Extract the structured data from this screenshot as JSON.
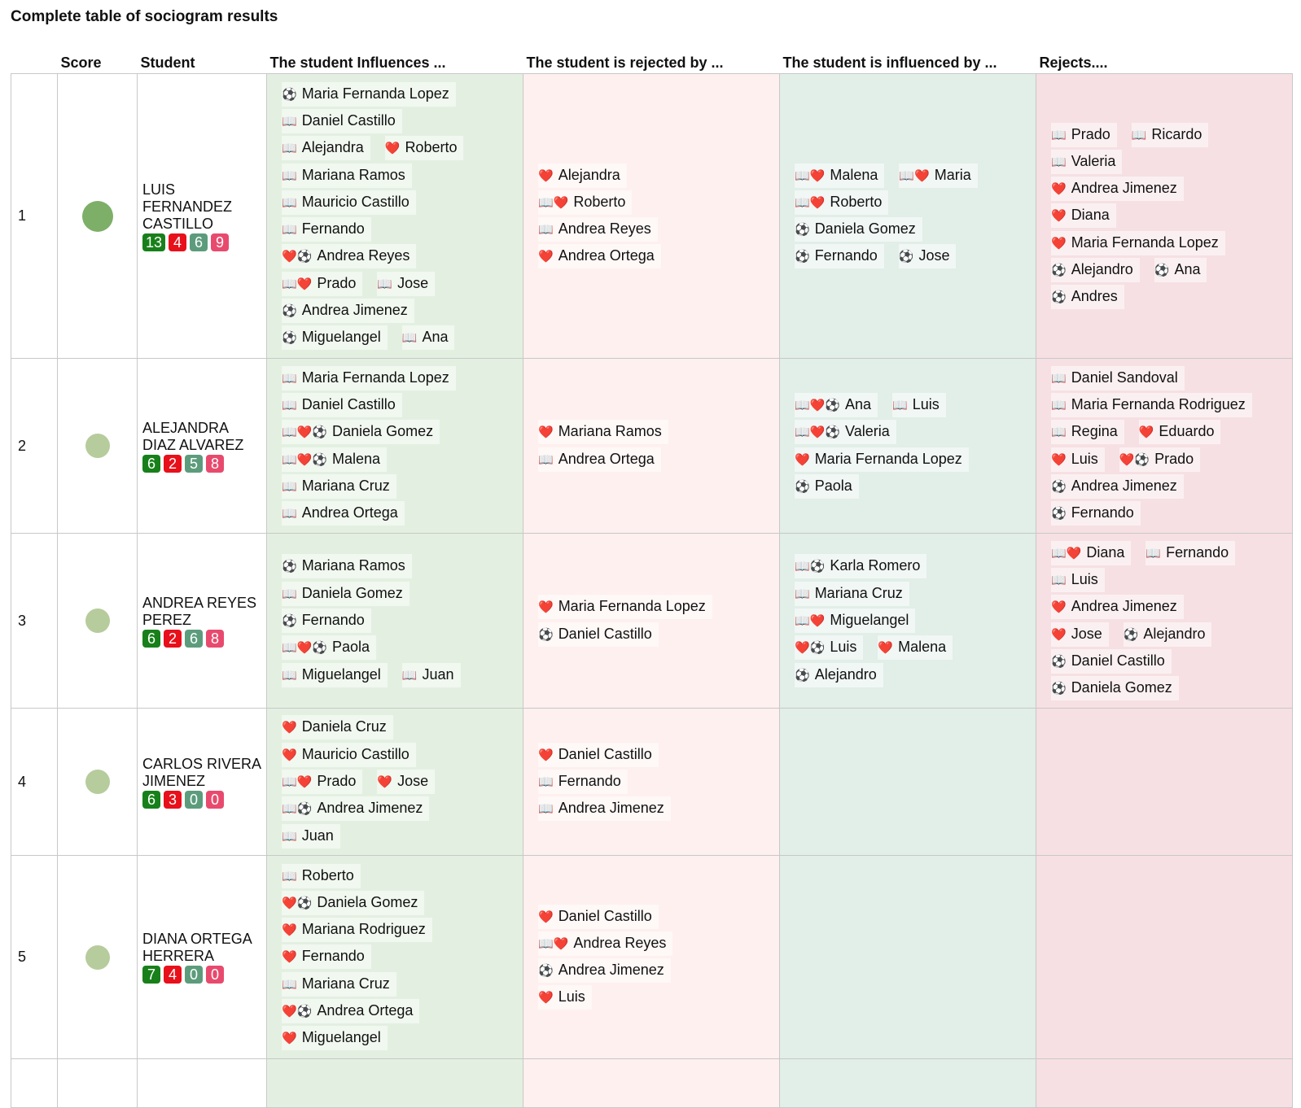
{
  "title": "Complete table of sociogram results",
  "headers": [
    "Score",
    "Student",
    "The student Influences ...",
    "The student is rejected by ...",
    "The student is influenced by ...",
    "Rejects...."
  ],
  "column_colors": [
    "#e3f0e1",
    "#fdf0ef",
    "#e2eee8",
    "#f6e0e3"
  ],
  "badge_colors": [
    "#18801a",
    "#e8101a",
    "#5c9c7c",
    "#e84a6e"
  ],
  "rows": [
    {
      "index": "1",
      "student": "LUIS FERNANDEZ CASTILLO",
      "badges": [
        13,
        4,
        6,
        9
      ],
      "score_color": "#7daf68",
      "cells": [
        [
          [
            [
              "⚽",
              "Maria Fernanda Lopez"
            ]
          ],
          [
            [
              "📖",
              "Daniel Castillo"
            ]
          ],
          [
            [
              "📖",
              "Alejandra"
            ],
            [
              "❤️",
              "Roberto"
            ]
          ],
          [
            [
              "📖",
              "Mariana Ramos"
            ]
          ],
          [
            [
              "📖",
              "Mauricio Castillo"
            ]
          ],
          [
            [
              "📖",
              "Fernando"
            ]
          ],
          [
            [
              "❤️⚽",
              "Andrea Reyes"
            ]
          ],
          [
            [
              "📖❤️",
              "Prado"
            ],
            [
              "📖",
              "Jose"
            ]
          ],
          [
            [
              "⚽",
              "Andrea Jimenez"
            ]
          ],
          [
            [
              "⚽",
              "Miguelangel"
            ],
            [
              "📖",
              "Ana"
            ]
          ]
        ],
        [
          [
            [
              "❤️",
              "Alejandra"
            ]
          ],
          [
            [
              "📖❤️",
              "Roberto"
            ]
          ],
          [
            [
              "📖",
              "Andrea Reyes"
            ]
          ],
          [
            [
              "❤️",
              "Andrea Ortega"
            ]
          ]
        ],
        [
          [
            [
              "📖❤️",
              "Malena"
            ],
            [
              "📖❤️",
              "Maria"
            ]
          ],
          [
            [
              "📖❤️",
              "Roberto"
            ]
          ],
          [
            [
              "⚽",
              "Daniela Gomez"
            ]
          ],
          [
            [
              "⚽",
              "Fernando"
            ],
            [
              "⚽",
              "Jose"
            ]
          ]
        ],
        [
          [
            [
              "📖",
              "Prado"
            ],
            [
              "📖",
              "Ricardo"
            ]
          ],
          [
            [
              "📖",
              "Valeria"
            ]
          ],
          [
            [
              "❤️",
              "Andrea Jimenez"
            ]
          ],
          [
            [
              "❤️",
              "Diana"
            ]
          ],
          [
            [
              "❤️",
              "Maria Fernanda Lopez"
            ]
          ],
          [
            [
              "⚽",
              "Alejandro"
            ],
            [
              "⚽",
              "Ana"
            ]
          ],
          [
            [
              "⚽",
              "Andres"
            ]
          ]
        ]
      ]
    },
    {
      "index": "2",
      "student": "ALEJANDRA DIAZ ALVAREZ",
      "badges": [
        6,
        2,
        5,
        8
      ],
      "score_color": "#b6cc9c",
      "cells": [
        [
          [
            [
              "📖",
              "Maria Fernanda Lopez"
            ]
          ],
          [
            [
              "📖",
              "Daniel Castillo"
            ]
          ],
          [
            [
              "📖❤️⚽",
              "Daniela Gomez"
            ]
          ],
          [
            [
              "📖❤️⚽",
              "Malena"
            ]
          ],
          [
            [
              "📖",
              "Mariana Cruz"
            ]
          ],
          [
            [
              "📖",
              "Andrea Ortega"
            ]
          ]
        ],
        [
          [
            [
              "❤️",
              "Mariana Ramos"
            ]
          ],
          [
            [
              "📖",
              "Andrea Ortega"
            ]
          ]
        ],
        [
          [
            [
              "📖❤️⚽",
              "Ana"
            ],
            [
              "📖",
              "Luis"
            ]
          ],
          [
            [
              "📖❤️⚽",
              "Valeria"
            ]
          ],
          [
            [
              "❤️",
              "Maria Fernanda Lopez"
            ]
          ],
          [
            [
              "⚽",
              "Paola"
            ]
          ]
        ],
        [
          [
            [
              "📖",
              "Daniel Sandoval"
            ]
          ],
          [
            [
              "📖",
              "Maria Fernanda Rodriguez"
            ]
          ],
          [
            [
              "📖",
              "Regina"
            ],
            [
              "❤️",
              "Eduardo"
            ]
          ],
          [
            [
              "❤️",
              "Luis"
            ],
            [
              "❤️⚽",
              "Prado"
            ]
          ],
          [
            [
              "⚽",
              "Andrea Jimenez"
            ]
          ],
          [
            [
              "⚽",
              "Fernando"
            ]
          ]
        ]
      ]
    },
    {
      "index": "3",
      "student": "ANDREA REYES PEREZ",
      "badges": [
        6,
        2,
        6,
        8
      ],
      "score_color": "#b6cc9c",
      "cells": [
        [
          [
            [
              "⚽",
              "Mariana Ramos"
            ]
          ],
          [
            [
              "📖",
              "Daniela Gomez"
            ]
          ],
          [
            [
              "⚽",
              "Fernando"
            ]
          ],
          [
            [
              "📖❤️⚽",
              "Paola"
            ]
          ],
          [
            [
              "📖",
              "Miguelangel"
            ],
            [
              "📖",
              "Juan"
            ]
          ]
        ],
        [
          [
            [
              "❤️",
              "Maria Fernanda Lopez"
            ]
          ],
          [
            [
              "⚽",
              "Daniel Castillo"
            ]
          ]
        ],
        [
          [
            [
              "📖⚽",
              "Karla Romero"
            ]
          ],
          [
            [
              "📖",
              "Mariana Cruz"
            ]
          ],
          [
            [
              "📖❤️",
              "Miguelangel"
            ]
          ],
          [
            [
              "❤️⚽",
              "Luis"
            ],
            [
              "❤️",
              "Malena"
            ]
          ],
          [
            [
              "⚽",
              "Alejandro"
            ]
          ]
        ],
        [
          [
            [
              "📖❤️",
              "Diana"
            ],
            [
              "📖",
              "Fernando"
            ]
          ],
          [
            [
              "📖",
              "Luis"
            ]
          ],
          [
            [
              "❤️",
              "Andrea Jimenez"
            ]
          ],
          [
            [
              "❤️",
              "Jose"
            ],
            [
              "⚽",
              "Alejandro"
            ]
          ],
          [
            [
              "⚽",
              "Daniel Castillo"
            ]
          ],
          [
            [
              "⚽",
              "Daniela Gomez"
            ]
          ]
        ]
      ]
    },
    {
      "index": "4",
      "student": "CARLOS RIVERA JIMENEZ",
      "badges": [
        6,
        3,
        0,
        0
      ],
      "score_color": "#b6cc9c",
      "cells": [
        [
          [
            [
              "❤️",
              "Daniela Cruz"
            ]
          ],
          [
            [
              "❤️",
              "Mauricio Castillo"
            ]
          ],
          [
            [
              "📖❤️",
              "Prado"
            ],
            [
              "❤️",
              "Jose"
            ]
          ],
          [
            [
              "📖⚽",
              "Andrea Jimenez"
            ]
          ],
          [
            [
              "📖",
              "Juan"
            ]
          ]
        ],
        [
          [
            [
              "❤️",
              "Daniel Castillo"
            ]
          ],
          [
            [
              "📖",
              "Fernando"
            ]
          ],
          [
            [
              "📖",
              "Andrea Jimenez"
            ]
          ]
        ],
        [],
        []
      ]
    },
    {
      "index": "5",
      "student": "DIANA ORTEGA HERRERA",
      "badges": [
        7,
        4,
        0,
        0
      ],
      "score_color": "#b6cc9c",
      "cells": [
        [
          [
            [
              "📖",
              "Roberto"
            ]
          ],
          [
            [
              "❤️⚽",
              "Daniela Gomez"
            ]
          ],
          [
            [
              "❤️",
              "Mariana Rodriguez"
            ]
          ],
          [
            [
              "❤️",
              "Fernando"
            ]
          ],
          [
            [
              "📖",
              "Mariana Cruz"
            ]
          ],
          [
            [
              "❤️⚽",
              "Andrea Ortega"
            ]
          ],
          [
            [
              "❤️",
              "Miguelangel"
            ]
          ]
        ],
        [
          [
            [
              "❤️",
              "Daniel Castillo"
            ]
          ],
          [
            [
              "📖❤️",
              "Andrea Reyes"
            ]
          ],
          [
            [
              "⚽",
              "Andrea Jimenez"
            ]
          ],
          [
            [
              "❤️",
              "Luis"
            ]
          ]
        ],
        [],
        []
      ]
    }
  ]
}
